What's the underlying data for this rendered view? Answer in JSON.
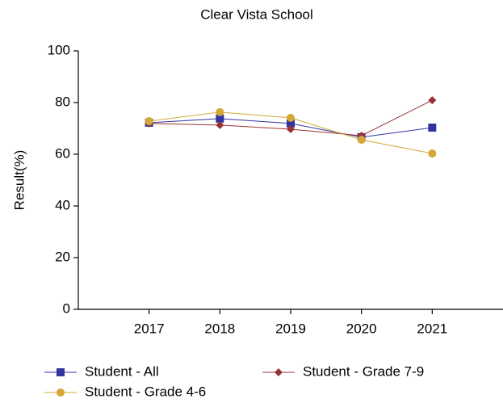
{
  "chart_data": {
    "type": "line",
    "title": "Clear Vista School",
    "ylabel": "Result(%)",
    "categories": [
      "2017",
      "2018",
      "2019",
      "2020",
      "2021"
    ],
    "series": [
      {
        "name": "Student - All",
        "color": "#3333a0",
        "marker": "square",
        "values": [
          72.2,
          73.8,
          71.9,
          66.6,
          70.3
        ]
      },
      {
        "name": "Student - Grade 7-9",
        "color": "#993333",
        "marker": "diamond",
        "values": [
          71.9,
          71.3,
          69.7,
          67.2,
          80.9
        ]
      },
      {
        "name": "Student - Grade 4-6",
        "color": "#d4a837",
        "marker": "circle",
        "values": [
          72.8,
          76.3,
          74.1,
          65.6,
          60.3
        ]
      }
    ],
    "ylim": [
      0,
      100
    ],
    "yticks": [
      0,
      20,
      40,
      60,
      80,
      100
    ],
    "grid": false,
    "legend": "bottom"
  }
}
